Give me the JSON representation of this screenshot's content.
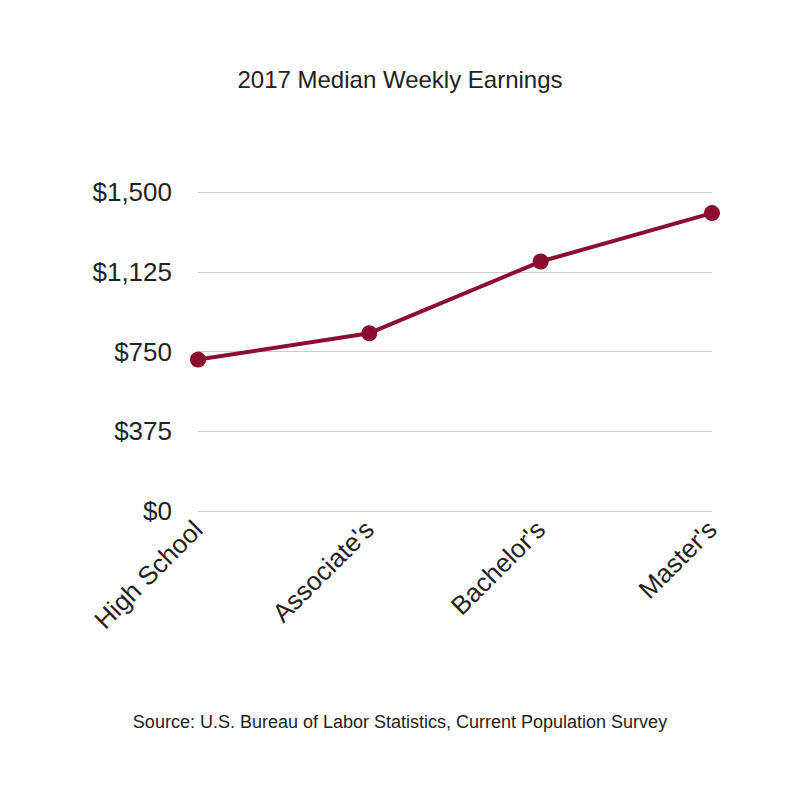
{
  "chart_data": {
    "type": "line",
    "title": "2017 Median Weekly Earnings",
    "source": "Source: U.S. Bureau of Labor Statistics, Current Population Survey",
    "categories": [
      "High School",
      "Associate's",
      "Bachelor's",
      "Master's"
    ],
    "values": [
      712,
      836,
      1173,
      1401
    ],
    "color": "#8c0d2f",
    "marker": "circle",
    "line_style": "solid",
    "ylim": [
      0,
      1500
    ],
    "yticks": [
      {
        "value": 0,
        "label": "$0"
      },
      {
        "value": 375,
        "label": "$375"
      },
      {
        "value": 750,
        "label": "$750"
      },
      {
        "value": 1125,
        "label": "$1,125"
      },
      {
        "value": 1500,
        "label": "$1,500"
      }
    ],
    "grid": true
  }
}
